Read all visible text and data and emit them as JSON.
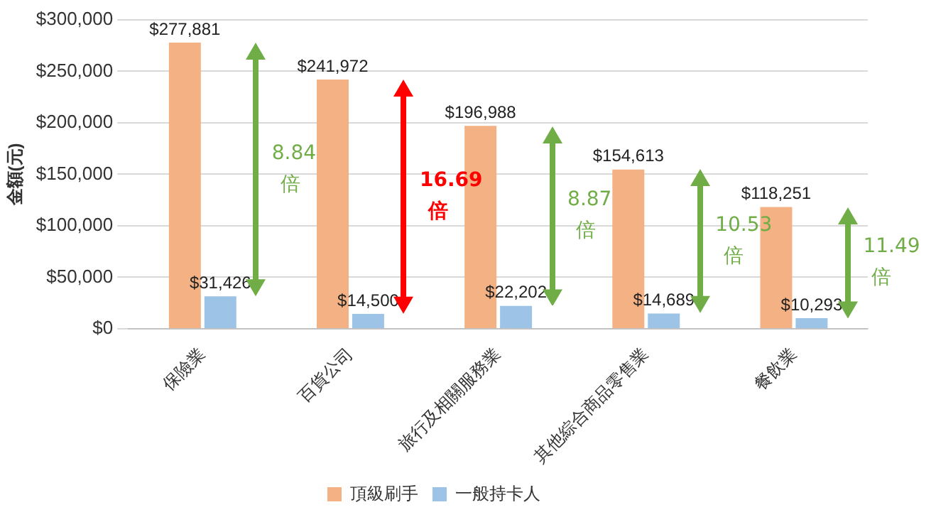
{
  "chart_data": {
    "type": "bar",
    "ylabel": "金額(元)",
    "categories": [
      "保險業",
      "百貨公司",
      "旅行及相關服務業",
      "其他綜合商品零售業",
      "餐飲業"
    ],
    "series": [
      {
        "name": "頂級刷手",
        "color": "#f4b183",
        "values": [
          277881,
          241972,
          196988,
          154613,
          118251
        ],
        "value_labels": [
          "$277,881",
          "$241,972",
          "$196,988",
          "$154,613",
          "$118,251"
        ]
      },
      {
        "name": "一般持卡人",
        "color": "#9dc3e6",
        "values": [
          31426,
          14500,
          22202,
          14689,
          10293
        ],
        "value_labels": [
          "$31,426",
          "$14,500",
          "$22,202",
          "$14,689",
          "$10,293"
        ]
      }
    ],
    "ylim": [
      0,
      300000
    ],
    "yticks": [
      {
        "value": 0,
        "label": "$0"
      },
      {
        "value": 50000,
        "label": "$50,000"
      },
      {
        "value": 100000,
        "label": "$100,000"
      },
      {
        "value": 150000,
        "label": "$150,000"
      },
      {
        "value": 200000,
        "label": "$200,000"
      },
      {
        "value": 250000,
        "label": "$250,000"
      },
      {
        "value": 300000,
        "label": "$300,000"
      }
    ],
    "grid": "y",
    "legend": "bottom",
    "annotations": [
      "8.84 倍",
      "16.69 倍",
      "8.87 倍",
      "10.53 倍",
      "11.49 倍"
    ]
  }
}
